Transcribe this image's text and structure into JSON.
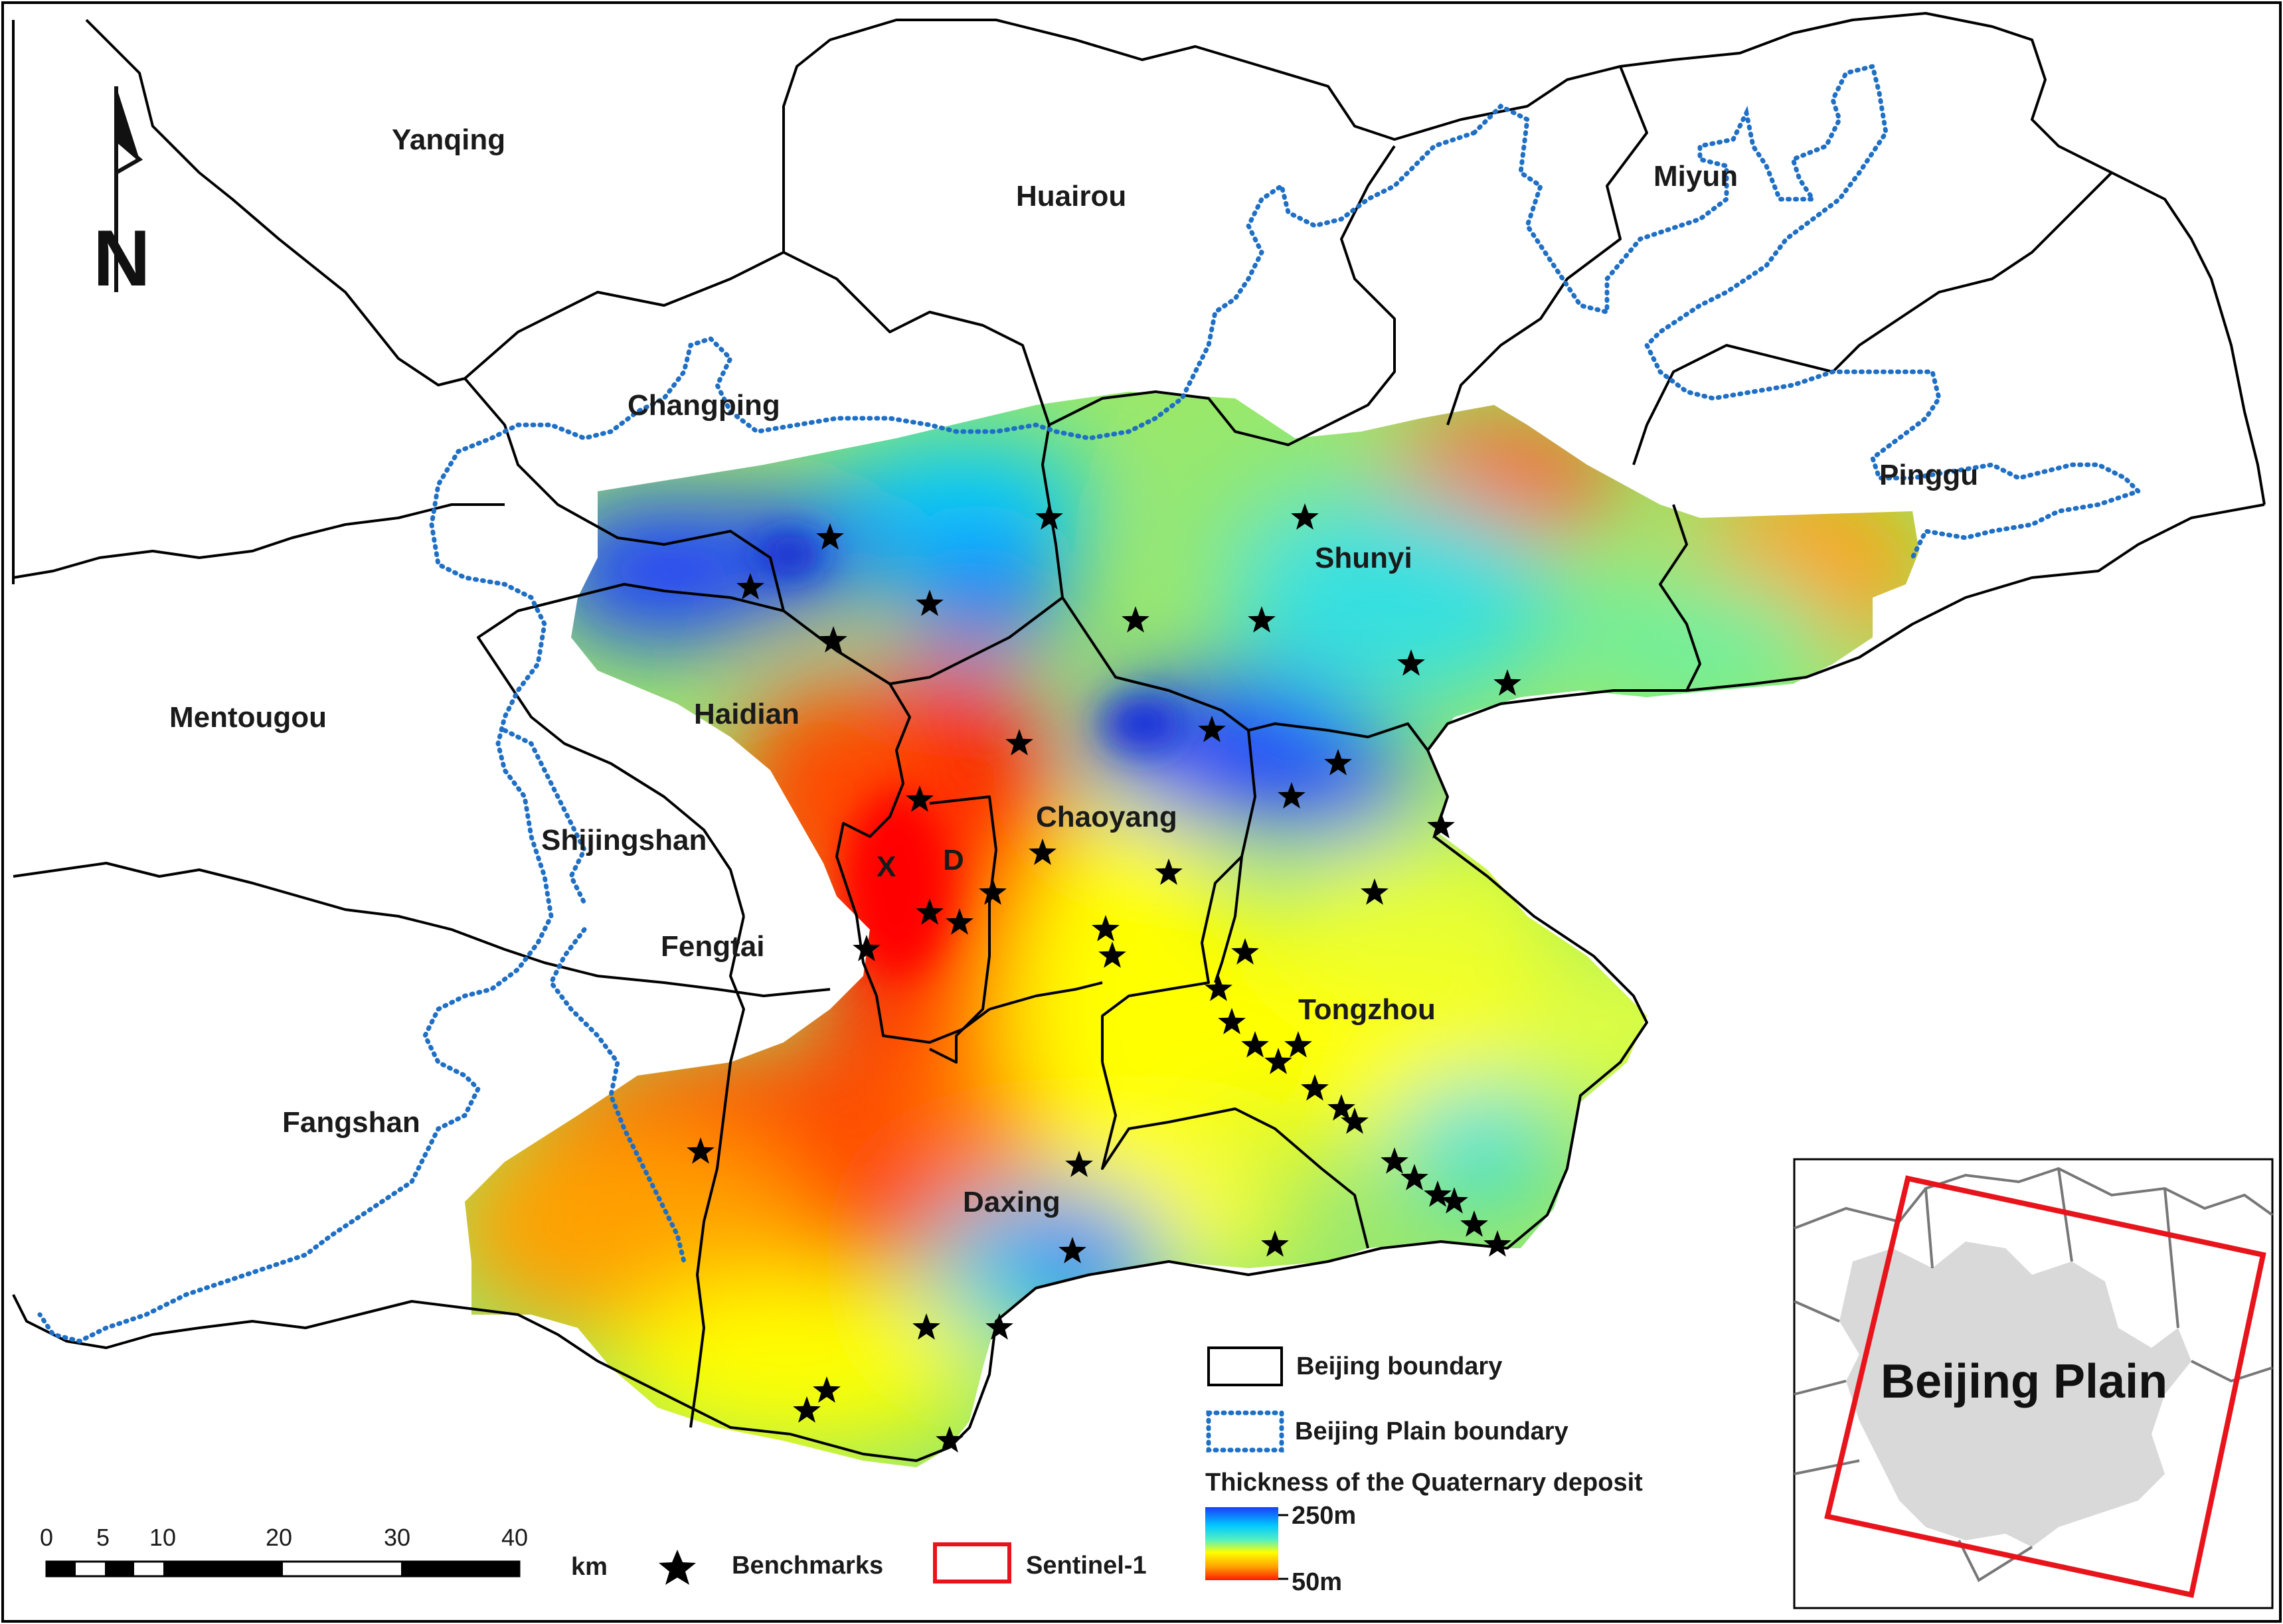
{
  "map": {
    "districts": [
      {
        "id": "yanqing",
        "label": "Yanqing"
      },
      {
        "id": "huairou",
        "label": "Huairou"
      },
      {
        "id": "miyun",
        "label": "Miyun"
      },
      {
        "id": "changping",
        "label": "Changping"
      },
      {
        "id": "pinggu",
        "label": "Pinggu"
      },
      {
        "id": "shunyi",
        "label": "Shunyi"
      },
      {
        "id": "mentougou",
        "label": "Mentougou"
      },
      {
        "id": "haidian",
        "label": "Haidian"
      },
      {
        "id": "chaoyang",
        "label": "Chaoyang"
      },
      {
        "id": "shijingshan",
        "label": "Shijingshan"
      },
      {
        "id": "fengtai",
        "label": "Fengtai"
      },
      {
        "id": "tongzhou",
        "label": "Tongzhou"
      },
      {
        "id": "fangshan",
        "label": "Fangshan"
      },
      {
        "id": "daxing",
        "label": "Daxing"
      },
      {
        "id": "xicheng",
        "label": "X"
      },
      {
        "id": "dongcheng",
        "label": "D"
      }
    ],
    "north_arrow": "N",
    "colors": {
      "thick": "#1a3cff",
      "mid_blue": "#00b4ff",
      "cyan": "#35e0e0",
      "green": "#9ae86a",
      "yellow": "#ffff00",
      "orange": "#ffa000",
      "thin": "#ff1a00",
      "plain_boundary": "#1f6fc4",
      "sentinel": "#e8141c",
      "inset_fill": "#d9d9d9",
      "boundary": "#000000"
    }
  },
  "legend": {
    "beijing_boundary": "Beijing boundary",
    "plain_boundary": "Beijing Plain boundary",
    "thickness_title": "Thickness of the Quaternary deposit",
    "thickness_max": "250m",
    "thickness_min": "50m",
    "benchmarks": "Benchmarks",
    "sentinel": "Sentinel-1"
  },
  "scale_bar": {
    "ticks": [
      "0",
      "5",
      "10",
      "20",
      "30",
      "40"
    ],
    "unit": "km"
  },
  "inset": {
    "title": "Beijing Plain"
  }
}
